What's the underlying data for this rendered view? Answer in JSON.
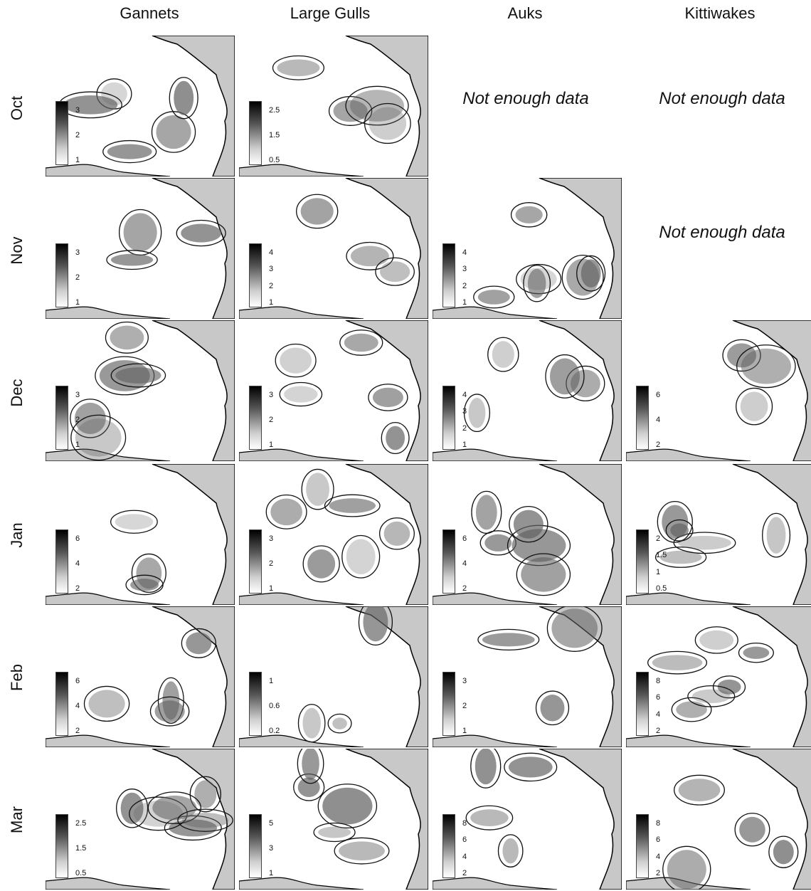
{
  "columns": [
    "Gannets",
    "Large Gulls",
    "Auks",
    "Kittiwakes"
  ],
  "rows": [
    "Oct",
    "Nov",
    "Dec",
    "Jan",
    "Feb",
    "Mar"
  ],
  "no_data_text": "Not enough data",
  "legends": {
    "gannets": {
      "oct": [
        "3",
        "2",
        "1"
      ],
      "nov": [
        "3",
        "2",
        "1"
      ],
      "dec": [
        "3",
        "2",
        "1"
      ],
      "jan": [
        "6",
        "4",
        "2"
      ],
      "feb": [
        "6",
        "4",
        "2"
      ],
      "mar": [
        "2.5",
        "1.5",
        "0.5"
      ]
    },
    "gulls": {
      "oct": [
        "2.5",
        "1.5",
        "0.5"
      ],
      "nov": [
        "4",
        "3",
        "2",
        "1"
      ],
      "dec": [
        "3",
        "2",
        "1"
      ],
      "jan": [
        "3",
        "2",
        "1"
      ],
      "feb": [
        "1",
        "0.6",
        "0.2"
      ],
      "mar": [
        "5",
        "3",
        "1"
      ]
    },
    "auks": {
      "nov": [
        "4",
        "3",
        "2",
        "1"
      ],
      "dec": [
        "4",
        "3",
        "2",
        "1"
      ],
      "jan": [
        "6",
        "4",
        "2"
      ],
      "feb": [
        "3",
        "2",
        "1"
      ],
      "mar": [
        "8",
        "6",
        "4",
        "2"
      ]
    },
    "kittiwakes": {
      "dec": [
        "6",
        "4",
        "2"
      ],
      "jan": [
        "2",
        "1.5",
        "1",
        "0.5"
      ],
      "feb": [
        "8",
        "6",
        "4",
        "2"
      ],
      "mar": [
        "8",
        "6",
        "4",
        "2"
      ]
    }
  },
  "colors": {
    "land": "#c8c8c8",
    "coast": "#000000",
    "contour": "#111111",
    "density": "#606060"
  }
}
